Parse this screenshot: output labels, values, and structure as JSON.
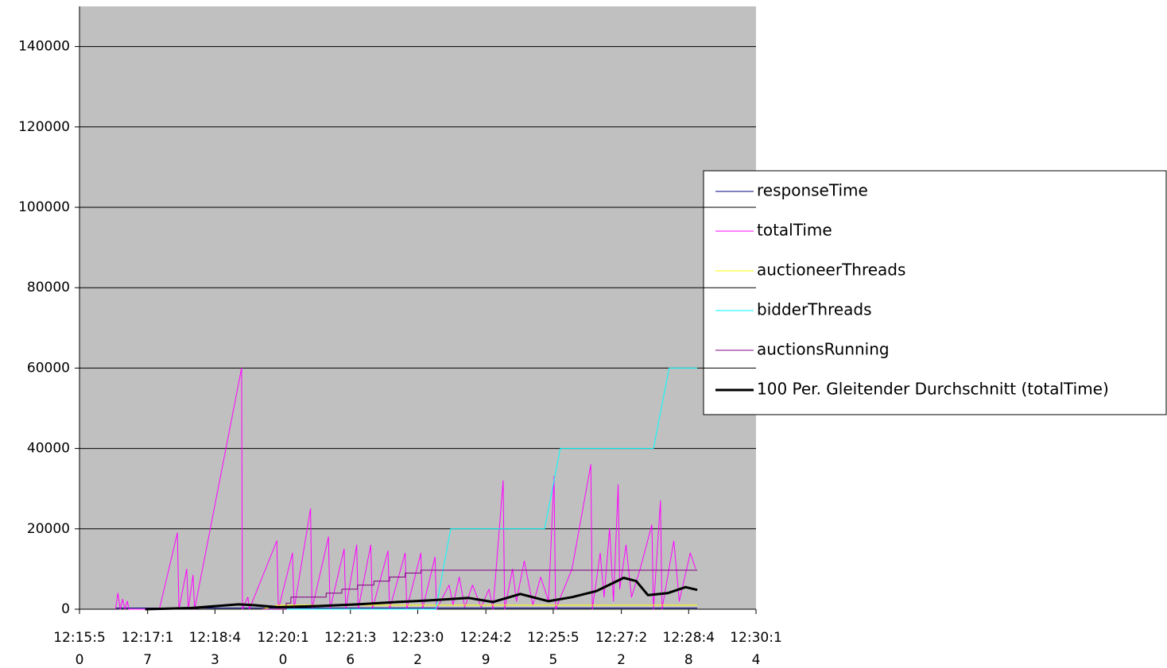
{
  "chart_data": {
    "type": "line",
    "xlim": [
      "12:15:50",
      "12:30:14"
    ],
    "xticks": [
      "12:15:50",
      "12:17:17",
      "12:18:43",
      "12:20:10",
      "12:21:36",
      "12:23:02",
      "12:24:29",
      "12:25:55",
      "12:27:22",
      "12:28:48",
      "12:30:14"
    ],
    "ylim": [
      0,
      150000
    ],
    "yticks": [
      0,
      20000,
      40000,
      60000,
      80000,
      100000,
      120000,
      140000
    ],
    "grid": true,
    "legend": "right",
    "series": [
      {
        "name": "responseTime",
        "color": "#000080",
        "line_width": 1,
        "x": [
          "12:16:36",
          "12:28:59"
        ],
        "values": [
          300,
          300
        ]
      },
      {
        "name": "totalTime",
        "color": "#ff00ff",
        "line_width": 1,
        "x": [
          "12:16:36",
          "12:16:39",
          "12:16:42",
          "12:16:45",
          "12:16:48",
          "12:16:51",
          "12:16:53",
          "12:17:32",
          "12:17:55",
          "12:17:57",
          "12:18:07",
          "12:18:09",
          "12:18:15",
          "12:18:17",
          "12:19:17",
          "12:19:18",
          "12:19:25",
          "12:19:27",
          "12:20:02",
          "12:20:04",
          "12:20:22",
          "12:20:24",
          "12:20:45",
          "12:20:47",
          "12:21:08",
          "12:21:10",
          "12:21:28",
          "12:21:30",
          "12:21:44",
          "12:21:46",
          "12:22:02",
          "12:22:04",
          "12:22:24",
          "12:22:26",
          "12:22:46",
          "12:22:48",
          "12:23:06",
          "12:23:08",
          "12:23:24",
          "12:23:26",
          "12:23:42",
          "12:23:47",
          "12:23:55",
          "12:24:02",
          "12:24:12",
          "12:24:23",
          "12:24:33",
          "12:24:38",
          "12:24:51",
          "12:24:53",
          "12:25:03",
          "12:25:08",
          "12:25:18",
          "12:25:29",
          "12:25:39",
          "12:25:49",
          "12:25:56",
          "12:25:58",
          "12:26:19",
          "12:26:43",
          "12:26:45",
          "12:26:55",
          "12:27:00",
          "12:27:07",
          "12:27:12",
          "12:27:18",
          "12:27:20",
          "12:27:28",
          "12:27:35",
          "12:27:46",
          "12:28:01",
          "12:28:03",
          "12:28:12",
          "12:28:14",
          "12:28:29",
          "12:28:36",
          "12:28:50",
          "12:28:57"
        ],
        "values": [
          0,
          4000,
          0,
          2500,
          0,
          2000,
          0,
          0,
          19000,
          0,
          10000,
          0,
          8500,
          0,
          60000,
          0,
          3000,
          0,
          17000,
          0,
          14000,
          0,
          25000,
          0,
          18000,
          0,
          15000,
          0,
          16000,
          0,
          16000,
          0,
          14500,
          0,
          14000,
          0,
          14000,
          0,
          13000,
          0,
          6000,
          1000,
          8000,
          500,
          6000,
          500,
          5000,
          0,
          32000,
          0,
          10000,
          2000,
          12000,
          1000,
          8000,
          2000,
          33000,
          0,
          10000,
          36000,
          0,
          14000,
          3000,
          20000,
          2000,
          31000,
          5000,
          16000,
          3000,
          10000,
          21000,
          0,
          27000,
          0,
          17000,
          2000,
          14000,
          10000
        ]
      },
      {
        "name": "auctioneerThreads",
        "color": "#ffff00",
        "line_width": 1,
        "x": [
          "12:19:43",
          "12:20:04",
          "12:28:59"
        ],
        "values": [
          0,
          1000,
          1000
        ]
      },
      {
        "name": "bidderThreads",
        "color": "#00ffff",
        "line_width": 1,
        "x": [
          "12:19:43",
          "12:23:25",
          "12:23:44",
          "12:25:44",
          "12:26:04",
          "12:28:03",
          "12:28:23",
          "12:28:59"
        ],
        "values": [
          0,
          0,
          20000,
          20000,
          40000,
          40000,
          60000,
          60000
        ]
      },
      {
        "name": "auctionsRunning",
        "color": "#800080",
        "line_width": 1,
        "x": [
          "12:19:43",
          "12:20:14",
          "12:20:14",
          "12:20:20",
          "12:20:20",
          "12:21:05",
          "12:21:05",
          "12:21:25",
          "12:21:25",
          "12:21:45",
          "12:21:45",
          "12:22:06",
          "12:22:06",
          "12:22:26",
          "12:22:26",
          "12:22:46",
          "12:22:46",
          "12:23:06",
          "12:23:06",
          "12:28:59"
        ],
        "values": [
          0,
          0,
          1500,
          1500,
          3000,
          3000,
          4000,
          4000,
          5000,
          5000,
          6000,
          6000,
          7000,
          7000,
          8000,
          8000,
          9000,
          9000,
          9700,
          9700
        ]
      },
      {
        "name": "100 Per. Gleitender Durchschnitt (totalTime)",
        "color": "#000000",
        "line_width": 3,
        "x": [
          "12:17:14",
          "12:18:12",
          "12:19:13",
          "12:19:33",
          "12:20:04",
          "12:20:55",
          "12:21:45",
          "12:22:36",
          "12:23:17",
          "12:24:07",
          "12:24:38",
          "12:25:13",
          "12:25:49",
          "12:26:19",
          "12:26:50",
          "12:27:25",
          "12:27:41",
          "12:27:56",
          "12:28:21",
          "12:28:44",
          "12:28:59"
        ],
        "values": [
          0,
          300,
          1200,
          1000,
          500,
          800,
          1200,
          1800,
          2200,
          2800,
          1800,
          3800,
          2000,
          3000,
          4500,
          7800,
          7000,
          3500,
          4000,
          5500,
          4800
        ]
      }
    ]
  }
}
